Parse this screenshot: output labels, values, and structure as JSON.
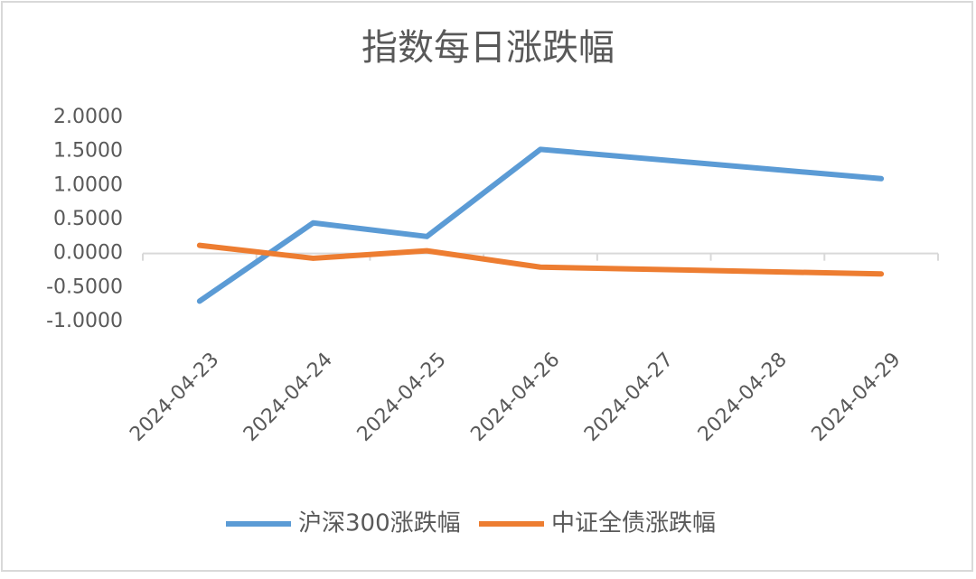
{
  "chart_data": {
    "type": "line",
    "title": "指数每日涨跌幅",
    "x": [
      "2024-04-23",
      "2024-04-24",
      "2024-04-25",
      "2024-04-26",
      "2024-04-29"
    ],
    "xticks": [
      "2024-04-23",
      "2024-04-24",
      "2024-04-25",
      "2024-04-26",
      "2024-04-27",
      "2024-04-28",
      "2024-04-29"
    ],
    "series": [
      {
        "name": "沪深300涨跌幅",
        "color": "#5b9bd5",
        "values": [
          -0.7,
          0.45,
          0.25,
          1.53,
          1.1
        ]
      },
      {
        "name": "中证全债涨跌幅",
        "color": "#ed7d31",
        "values": [
          0.12,
          -0.07,
          0.04,
          -0.2,
          -0.3
        ]
      }
    ],
    "ylim": [
      -1,
      2
    ],
    "yticks": [
      {
        "value": -1,
        "label": "-1.0000"
      },
      {
        "value": -0.5,
        "label": "-0.5000"
      },
      {
        "value": 0,
        "label": "0.0000"
      },
      {
        "value": 0.5,
        "label": "0.5000"
      },
      {
        "value": 1,
        "label": "1.0000"
      },
      {
        "value": 1.5,
        "label": "1.5000"
      },
      {
        "value": 2,
        "label": "2.0000"
      }
    ],
    "grid": false,
    "legend": "bottom"
  }
}
